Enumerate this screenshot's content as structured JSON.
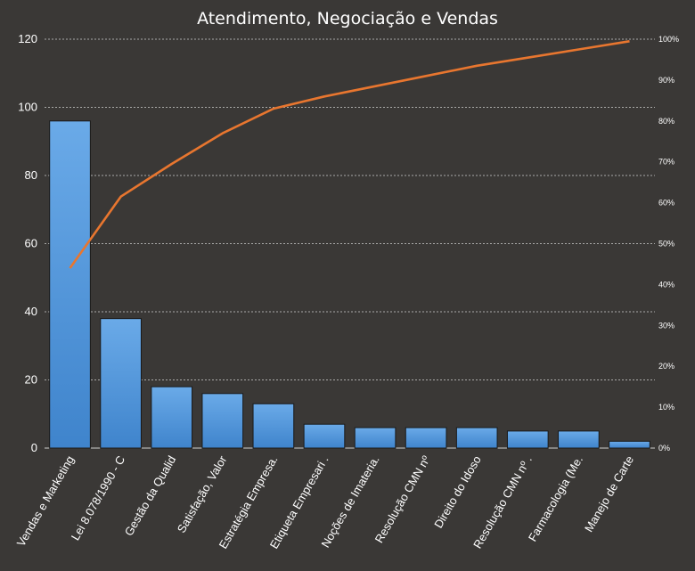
{
  "chart_data": {
    "type": "bar",
    "title": "Atendimento, Negociação e Vendas",
    "categories": [
      "Vendas e Marketing",
      "Lei 8.078/1990 - C",
      "Gestão da Qualid",
      "Satisfação, Valor",
      "Estratégia Empresa.",
      "Etiqueta Empresari .",
      "Noções de Imateria.",
      "Resolução CMN nº",
      "Direito do Idoso",
      "Resolução CMN nº .",
      "Farmacologia (Me.",
      "Manejo de Carte"
    ],
    "series": [
      {
        "type": "bar",
        "values": [
          96,
          38,
          18,
          16,
          13,
          7,
          6,
          6,
          6,
          5,
          5,
          2
        ]
      },
      {
        "type": "line",
        "axis": "right",
        "values": [
          44,
          61.5,
          69.5,
          77,
          83,
          86,
          88.5,
          91,
          93.5,
          95.5,
          97.5,
          99.5
        ]
      }
    ],
    "ylim": [
      0,
      120
    ],
    "yticks": [
      "0",
      "20",
      "40",
      "60",
      "80",
      "100",
      "120"
    ],
    "y2lim": [
      0,
      100
    ],
    "y2ticks": [
      "0%",
      "10%",
      "20%",
      "30%",
      "40%",
      "50%",
      "60%",
      "70%",
      "80%",
      "90%",
      "100%"
    ],
    "grid": true,
    "legend": "none",
    "colors": {
      "background": "#3a3836",
      "bar": "#4a8fd4",
      "bar_highlight": "#6aaae8",
      "bar_edge": "#1a1a1a",
      "line": "#e8762f",
      "grid": "#cfcfcf",
      "text": "#ffffff"
    }
  }
}
